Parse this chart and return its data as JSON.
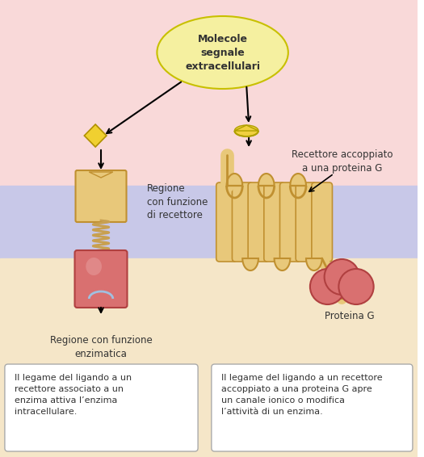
{
  "bg_top_color": "#f9d9d9",
  "bg_mid_color": "#c8c8e8",
  "bg_bot_color": "#f5e6c8",
  "text_color": "#333333",
  "receptor_color": "#e8c87a",
  "enzyme_color": "#d97070",
  "protein_g_color": "#d97070",
  "spring_color": "#c8a050",
  "label_receptor": "Regione\ncon funzione\ndi recettore",
  "label_enzyme": "Regione con funzione\nenzimatica",
  "label_g_receptor": "Recettore accoppiato\na una proteina G",
  "label_proteina": "Proteina G",
  "label_molecule": "Molecole\nsegnale\nextracellulari",
  "text_left": "Il legame del ligando a un\nrecettore associato a un\nenzima attiva l’enzima\nintracellulare.",
  "text_right": "Il legame del ligando a un recettore\naccoppiato a una proteina G apre\nun canale ionico o modifica\nl’attività di un enzima.",
  "figsize": [
    5.25,
    5.66
  ],
  "dpi": 100
}
